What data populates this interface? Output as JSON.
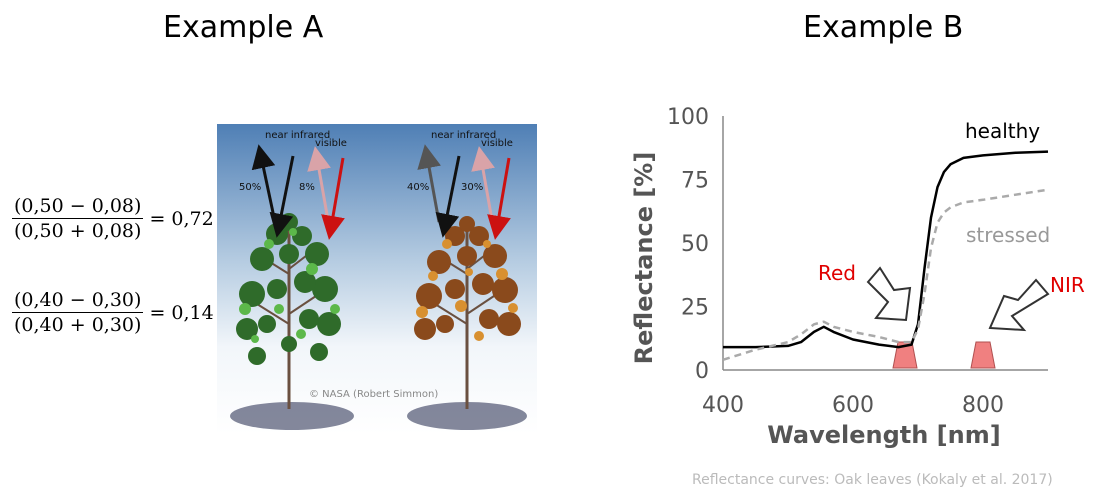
{
  "example_a": {
    "title": "Example A",
    "formulas": [
      {
        "numerator": "(0,50 − 0,08)",
        "denominator": "(0,50 + 0,08)",
        "result": "= 0,72"
      },
      {
        "numerator": "(0,40 − 0,30)",
        "denominator": "(0,40 + 0,30)",
        "result": "= 0,14"
      }
    ],
    "figure": {
      "healthy_tree": {
        "nir_label": "near infrared",
        "nir_value": "50%",
        "visible_label": "visible",
        "visible_value": "8%"
      },
      "stressed_tree": {
        "nir_label": "near infrared",
        "nir_value": "40%",
        "visible_label": "visible",
        "visible_value": "30%"
      },
      "credit": "© NASA (Robert Simmon)"
    }
  },
  "example_b": {
    "title": "Example B",
    "annotations": {
      "red": "Red",
      "nir": "NIR"
    },
    "caption": "Reflectance curves: Oak leaves (Kokaly et al. 2017)"
  },
  "colors": {
    "red_annotation": "#e00000",
    "band_marker": "#f08080",
    "healthy": "#000000",
    "stressed": "#aaaaaa"
  },
  "chart_data": {
    "type": "line",
    "xlabel": "Wavelength [nm]",
    "ylabel": "Reflectance [%]",
    "xlim": [
      400,
      900
    ],
    "ylim": [
      0,
      100
    ],
    "xticks": [
      400,
      600,
      800
    ],
    "yticks": [
      0,
      25,
      50,
      75,
      100
    ],
    "grid": false,
    "series": [
      {
        "name": "healthy",
        "x": [
          400,
          450,
          500,
          520,
          540,
          555,
          570,
          600,
          640,
          670,
          690,
          700,
          710,
          720,
          730,
          740,
          750,
          770,
          800,
          850,
          900
        ],
        "y": [
          9,
          9,
          9.5,
          11,
          15,
          17,
          15,
          12,
          10,
          9,
          10,
          18,
          40,
          60,
          72,
          78,
          81,
          83.5,
          84.5,
          85.5,
          86
        ]
      },
      {
        "name": "stressed",
        "x": [
          400,
          450,
          500,
          520,
          540,
          555,
          570,
          600,
          640,
          670,
          690,
          700,
          710,
          720,
          730,
          740,
          750,
          770,
          800,
          850,
          900
        ],
        "y": [
          4,
          8,
          11,
          14,
          18,
          19,
          17,
          15,
          13,
          11,
          11,
          16,
          30,
          48,
          58,
          62,
          64,
          66,
          67,
          69,
          71
        ]
      }
    ],
    "bands": [
      {
        "name": "Red",
        "center": 680
      },
      {
        "name": "NIR",
        "center": 800
      }
    ]
  }
}
